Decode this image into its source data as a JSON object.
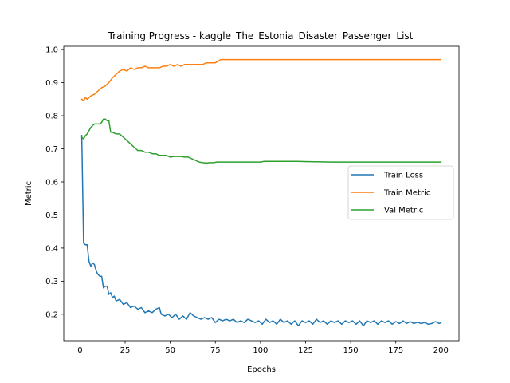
{
  "chart_data": {
    "type": "line",
    "title": "Training Progress - kaggle_The_Estonia_Disaster_Passenger_List",
    "xlabel": "Epochs",
    "ylabel": "Metric",
    "xlim": [
      -9,
      210
    ],
    "ylim": [
      0.12,
      1.01
    ],
    "xticks": [
      "0",
      "25",
      "50",
      "75",
      "100",
      "125",
      "150",
      "175",
      "200"
    ],
    "yticks": [
      "0.2",
      "0.3",
      "0.4",
      "0.5",
      "0.6",
      "0.7",
      "0.8",
      "0.9",
      "1.0"
    ],
    "grid": false,
    "legend_position": "center-right",
    "series": [
      {
        "name": "Train Loss",
        "color": "#1f77b4",
        "points": [
          [
            1,
            0.74
          ],
          [
            2,
            0.415
          ],
          [
            3,
            0.41
          ],
          [
            4,
            0.41
          ],
          [
            5,
            0.36
          ],
          [
            6,
            0.345
          ],
          [
            7,
            0.355
          ],
          [
            8,
            0.35
          ],
          [
            9,
            0.33
          ],
          [
            10,
            0.32
          ],
          [
            11,
            0.315
          ],
          [
            12,
            0.315
          ],
          [
            13,
            0.28
          ],
          [
            14,
            0.285
          ],
          [
            15,
            0.285
          ],
          [
            16,
            0.26
          ],
          [
            17,
            0.265
          ],
          [
            18,
            0.25
          ],
          [
            19,
            0.255
          ],
          [
            20,
            0.24
          ],
          [
            22,
            0.245
          ],
          [
            24,
            0.23
          ],
          [
            26,
            0.235
          ],
          [
            28,
            0.22
          ],
          [
            30,
            0.225
          ],
          [
            32,
            0.215
          ],
          [
            34,
            0.22
          ],
          [
            36,
            0.205
          ],
          [
            38,
            0.21
          ],
          [
            40,
            0.205
          ],
          [
            42,
            0.215
          ],
          [
            44,
            0.22
          ],
          [
            45,
            0.2
          ],
          [
            47,
            0.195
          ],
          [
            49,
            0.2
          ],
          [
            51,
            0.19
          ],
          [
            53,
            0.2
          ],
          [
            55,
            0.185
          ],
          [
            57,
            0.195
          ],
          [
            59,
            0.185
          ],
          [
            61,
            0.205
          ],
          [
            63,
            0.195
          ],
          [
            65,
            0.19
          ],
          [
            67,
            0.185
          ],
          [
            69,
            0.19
          ],
          [
            71,
            0.185
          ],
          [
            73,
            0.19
          ],
          [
            75,
            0.175
          ],
          [
            77,
            0.185
          ],
          [
            79,
            0.18
          ],
          [
            81,
            0.185
          ],
          [
            83,
            0.18
          ],
          [
            85,
            0.185
          ],
          [
            87,
            0.175
          ],
          [
            89,
            0.18
          ],
          [
            91,
            0.175
          ],
          [
            93,
            0.185
          ],
          [
            95,
            0.18
          ],
          [
            97,
            0.175
          ],
          [
            99,
            0.18
          ],
          [
            101,
            0.17
          ],
          [
            103,
            0.185
          ],
          [
            105,
            0.175
          ],
          [
            107,
            0.18
          ],
          [
            109,
            0.17
          ],
          [
            111,
            0.185
          ],
          [
            113,
            0.175
          ],
          [
            115,
            0.18
          ],
          [
            117,
            0.17
          ],
          [
            119,
            0.18
          ],
          [
            121,
            0.165
          ],
          [
            123,
            0.18
          ],
          [
            125,
            0.175
          ],
          [
            127,
            0.18
          ],
          [
            129,
            0.17
          ],
          [
            131,
            0.185
          ],
          [
            133,
            0.175
          ],
          [
            135,
            0.18
          ],
          [
            137,
            0.17
          ],
          [
            139,
            0.18
          ],
          [
            141,
            0.175
          ],
          [
            143,
            0.18
          ],
          [
            145,
            0.17
          ],
          [
            147,
            0.18
          ],
          [
            149,
            0.175
          ],
          [
            151,
            0.18
          ],
          [
            153,
            0.17
          ],
          [
            155,
            0.18
          ],
          [
            157,
            0.165
          ],
          [
            159,
            0.18
          ],
          [
            161,
            0.175
          ],
          [
            163,
            0.18
          ],
          [
            165,
            0.17
          ],
          [
            167,
            0.18
          ],
          [
            169,
            0.175
          ],
          [
            171,
            0.18
          ],
          [
            173,
            0.17
          ],
          [
            175,
            0.178
          ],
          [
            177,
            0.172
          ],
          [
            179,
            0.18
          ],
          [
            181,
            0.172
          ],
          [
            183,
            0.178
          ],
          [
            185,
            0.172
          ],
          [
            187,
            0.176
          ],
          [
            189,
            0.172
          ],
          [
            191,
            0.175
          ],
          [
            193,
            0.17
          ],
          [
            195,
            0.172
          ],
          [
            197,
            0.178
          ],
          [
            199,
            0.172
          ],
          [
            200,
            0.175
          ]
        ]
      },
      {
        "name": "Train Metric",
        "color": "#ff7f0e",
        "points": [
          [
            1,
            0.85
          ],
          [
            2,
            0.845
          ],
          [
            3,
            0.855
          ],
          [
            4,
            0.85
          ],
          [
            5,
            0.855
          ],
          [
            6,
            0.86
          ],
          [
            8,
            0.865
          ],
          [
            10,
            0.875
          ],
          [
            12,
            0.885
          ],
          [
            14,
            0.89
          ],
          [
            16,
            0.9
          ],
          [
            18,
            0.915
          ],
          [
            20,
            0.925
          ],
          [
            22,
            0.935
          ],
          [
            24,
            0.94
          ],
          [
            26,
            0.935
          ],
          [
            28,
            0.945
          ],
          [
            30,
            0.94
          ],
          [
            32,
            0.945
          ],
          [
            34,
            0.945
          ],
          [
            36,
            0.95
          ],
          [
            38,
            0.945
          ],
          [
            40,
            0.945
          ],
          [
            42,
            0.945
          ],
          [
            44,
            0.945
          ],
          [
            46,
            0.95
          ],
          [
            48,
            0.95
          ],
          [
            50,
            0.955
          ],
          [
            52,
            0.95
          ],
          [
            54,
            0.955
          ],
          [
            56,
            0.95
          ],
          [
            58,
            0.955
          ],
          [
            60,
            0.955
          ],
          [
            62,
            0.955
          ],
          [
            64,
            0.955
          ],
          [
            66,
            0.955
          ],
          [
            68,
            0.955
          ],
          [
            70,
            0.96
          ],
          [
            72,
            0.96
          ],
          [
            75,
            0.96
          ],
          [
            78,
            0.97
          ],
          [
            80,
            0.97
          ],
          [
            100,
            0.97
          ],
          [
            150,
            0.97
          ],
          [
            200,
            0.97
          ]
        ]
      },
      {
        "name": "Val Metric",
        "color": "#2ca02c",
        "points": [
          [
            1,
            0.735
          ],
          [
            2,
            0.73
          ],
          [
            3,
            0.74
          ],
          [
            4,
            0.745
          ],
          [
            5,
            0.755
          ],
          [
            6,
            0.765
          ],
          [
            7,
            0.77
          ],
          [
            8,
            0.775
          ],
          [
            9,
            0.775
          ],
          [
            10,
            0.775
          ],
          [
            11,
            0.775
          ],
          [
            12,
            0.78
          ],
          [
            13,
            0.79
          ],
          [
            14,
            0.79
          ],
          [
            15,
            0.785
          ],
          [
            16,
            0.785
          ],
          [
            17,
            0.75
          ],
          [
            18,
            0.75
          ],
          [
            20,
            0.745
          ],
          [
            22,
            0.745
          ],
          [
            24,
            0.735
          ],
          [
            26,
            0.725
          ],
          [
            28,
            0.715
          ],
          [
            30,
            0.705
          ],
          [
            32,
            0.695
          ],
          [
            34,
            0.695
          ],
          [
            36,
            0.69
          ],
          [
            38,
            0.69
          ],
          [
            40,
            0.685
          ],
          [
            42,
            0.685
          ],
          [
            44,
            0.68
          ],
          [
            46,
            0.68
          ],
          [
            48,
            0.68
          ],
          [
            50,
            0.675
          ],
          [
            52,
            0.677
          ],
          [
            54,
            0.677
          ],
          [
            56,
            0.677
          ],
          [
            58,
            0.675
          ],
          [
            60,
            0.675
          ],
          [
            62,
            0.67
          ],
          [
            64,
            0.665
          ],
          [
            66,
            0.66
          ],
          [
            68,
            0.658
          ],
          [
            70,
            0.657
          ],
          [
            72,
            0.658
          ],
          [
            74,
            0.658
          ],
          [
            76,
            0.66
          ],
          [
            80,
            0.66
          ],
          [
            90,
            0.66
          ],
          [
            100,
            0.66
          ],
          [
            102,
            0.662
          ],
          [
            110,
            0.662
          ],
          [
            120,
            0.662
          ],
          [
            130,
            0.661
          ],
          [
            140,
            0.66
          ],
          [
            150,
            0.66
          ],
          [
            160,
            0.66
          ],
          [
            170,
            0.66
          ],
          [
            180,
            0.66
          ],
          [
            190,
            0.66
          ],
          [
            200,
            0.66
          ]
        ]
      }
    ]
  }
}
